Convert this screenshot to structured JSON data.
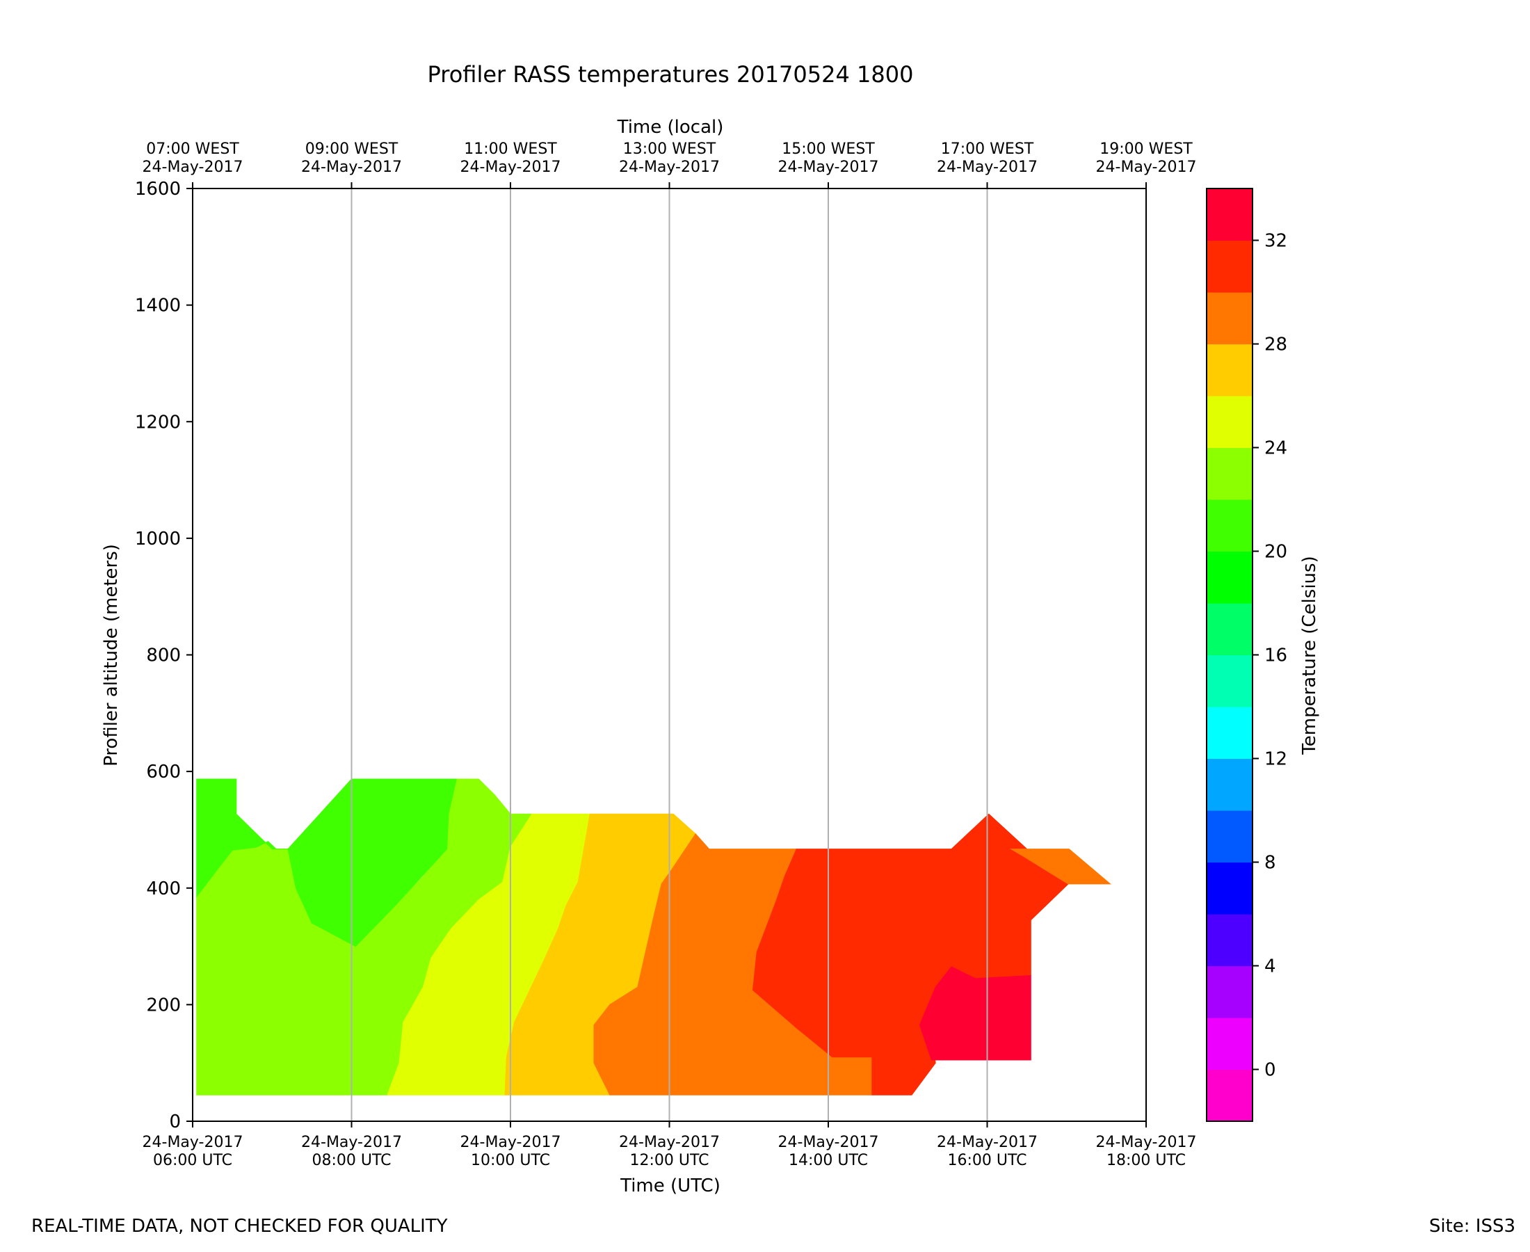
{
  "chart_data": {
    "type": "heatmap",
    "title": "Profiler RASS temperatures 20170524 1800",
    "xlabel": "Time (UTC)",
    "xlabel_top": "Time (local)",
    "ylabel": "Profiler altitude (meters)",
    "colorbar_label": "Temperature (Celsius)",
    "x_range_hours_utc": [
      6,
      18
    ],
    "ylim": [
      0,
      1600
    ],
    "grid": "vertical lines at x ticks",
    "x_ticks": [
      {
        "hour": 6,
        "utc_date": "24-May-2017",
        "utc_time": "06:00 UTC",
        "local_time": "07:00 WEST",
        "local_date": "24-May-2017"
      },
      {
        "hour": 8,
        "utc_date": "24-May-2017",
        "utc_time": "08:00 UTC",
        "local_time": "09:00 WEST",
        "local_date": "24-May-2017"
      },
      {
        "hour": 10,
        "utc_date": "24-May-2017",
        "utc_time": "10:00 UTC",
        "local_time": "11:00 WEST",
        "local_date": "24-May-2017"
      },
      {
        "hour": 12,
        "utc_date": "24-May-2017",
        "utc_time": "12:00 UTC",
        "local_time": "13:00 WEST",
        "local_date": "24-May-2017"
      },
      {
        "hour": 14,
        "utc_date": "24-May-2017",
        "utc_time": "14:00 UTC",
        "local_time": "15:00 WEST",
        "local_date": "24-May-2017"
      },
      {
        "hour": 16,
        "utc_date": "24-May-2017",
        "utc_time": "16:00 UTC",
        "local_time": "17:00 WEST",
        "local_date": "24-May-2017"
      },
      {
        "hour": 18,
        "utc_date": "24-May-2017",
        "utc_time": "18:00 UTC",
        "local_time": "19:00 WEST",
        "local_date": "24-May-2017"
      }
    ],
    "y_ticks": [
      0,
      200,
      400,
      600,
      800,
      1000,
      1200,
      1400,
      1600
    ],
    "colorbar": {
      "range": [
        -2,
        34
      ],
      "ticks": [
        0,
        4,
        8,
        12,
        16,
        20,
        24,
        28,
        32
      ],
      "levels": [
        {
          "from": -2,
          "to": 0,
          "color": "#ff00cc"
        },
        {
          "from": 0,
          "to": 2,
          "color": "#ee00ff"
        },
        {
          "from": 2,
          "to": 4,
          "color": "#a600ff"
        },
        {
          "from": 4,
          "to": 6,
          "color": "#4d00ff"
        },
        {
          "from": 6,
          "to": 8,
          "color": "#0000ff"
        },
        {
          "from": 8,
          "to": 10,
          "color": "#005aff"
        },
        {
          "from": 10,
          "to": 12,
          "color": "#00a6ff"
        },
        {
          "from": 12,
          "to": 14,
          "color": "#00ffff"
        },
        {
          "from": 14,
          "to": 16,
          "color": "#00ffb3"
        },
        {
          "from": 16,
          "to": 18,
          "color": "#00ff66"
        },
        {
          "from": 18,
          "to": 20,
          "color": "#00ff00"
        },
        {
          "from": 20,
          "to": 22,
          "color": "#40ff00"
        },
        {
          "from": 22,
          "to": 24,
          "color": "#8cff00"
        },
        {
          "from": 24,
          "to": 26,
          "color": "#e0ff00"
        },
        {
          "from": 26,
          "to": 28,
          "color": "#ffcc00"
        },
        {
          "from": 28,
          "to": 30,
          "color": "#ff7700"
        },
        {
          "from": 30,
          "to": 32,
          "color": "#ff2a00"
        },
        {
          "from": 32,
          "to": 34,
          "color": "#ff0033"
        }
      ]
    },
    "regions": [
      {
        "level": "22-24",
        "color": "#8cff00",
        "points": [
          [
            6.05,
            45
          ],
          [
            8.45,
            45
          ],
          [
            8.6,
            100
          ],
          [
            8.65,
            170
          ],
          [
            8.9,
            230
          ],
          [
            9.0,
            280
          ],
          [
            9.25,
            330
          ],
          [
            9.6,
            380
          ],
          [
            9.9,
            410
          ],
          [
            10.0,
            470
          ],
          [
            10.27,
            527
          ],
          [
            10.0,
            527
          ],
          [
            9.8,
            560
          ],
          [
            9.6,
            587
          ],
          [
            9.2,
            587
          ],
          [
            9.15,
            527
          ],
          [
            9.15,
            467
          ],
          [
            8.9,
            420
          ],
          [
            8.55,
            370
          ],
          [
            8.05,
            300
          ],
          [
            7.5,
            340
          ],
          [
            7.3,
            400
          ],
          [
            7.2,
            467
          ],
          [
            7.05,
            467
          ],
          [
            6.95,
            480
          ],
          [
            6.8,
            470
          ],
          [
            6.5,
            465
          ],
          [
            6.3,
            430
          ],
          [
            6.05,
            385
          ]
        ]
      },
      {
        "level": "20-22",
        "color": "#40ff00",
        "points": [
          [
            6.05,
            587
          ],
          [
            6.55,
            587
          ],
          [
            6.55,
            527
          ],
          [
            7.0,
            467
          ],
          [
            7.2,
            467
          ],
          [
            8.0,
            587
          ],
          [
            9.32,
            587
          ],
          [
            9.22,
            527
          ],
          [
            9.2,
            467
          ],
          [
            8.55,
            370
          ],
          [
            8.05,
            300
          ],
          [
            7.5,
            340
          ],
          [
            7.3,
            400
          ],
          [
            7.2,
            467
          ],
          [
            7.05,
            467
          ],
          [
            6.95,
            480
          ],
          [
            6.8,
            470
          ],
          [
            6.5,
            465
          ],
          [
            6.3,
            430
          ],
          [
            6.05,
            385
          ]
        ]
      },
      {
        "level": "24-26",
        "color": "#e0ff00",
        "points": [
          [
            8.45,
            45
          ],
          [
            9.93,
            45
          ],
          [
            9.95,
            110
          ],
          [
            10.05,
            170
          ],
          [
            10.4,
            270
          ],
          [
            10.6,
            330
          ],
          [
            10.7,
            370
          ],
          [
            10.85,
            410
          ],
          [
            11.0,
            527
          ],
          [
            10.27,
            527
          ],
          [
            10.0,
            470
          ],
          [
            9.9,
            410
          ],
          [
            9.6,
            380
          ],
          [
            9.25,
            330
          ],
          [
            9.0,
            280
          ],
          [
            8.9,
            230
          ],
          [
            8.65,
            170
          ],
          [
            8.6,
            100
          ]
        ]
      },
      {
        "level": "26-28",
        "color": "#ffcc00",
        "points": [
          [
            9.93,
            45
          ],
          [
            11.25,
            45
          ],
          [
            11.05,
            100
          ],
          [
            11.05,
            165
          ],
          [
            11.25,
            200
          ],
          [
            11.6,
            230
          ],
          [
            11.7,
            290
          ],
          [
            11.8,
            350
          ],
          [
            11.9,
            407
          ],
          [
            12.02,
            430
          ],
          [
            12.33,
            493
          ],
          [
            12.05,
            527
          ],
          [
            11.0,
            527
          ],
          [
            10.85,
            410
          ],
          [
            10.7,
            370
          ],
          [
            10.6,
            330
          ],
          [
            10.4,
            270
          ],
          [
            10.05,
            170
          ],
          [
            9.95,
            110
          ]
        ]
      },
      {
        "level": "28-30",
        "color": "#ff7700",
        "points": [
          [
            11.25,
            45
          ],
          [
            14.55,
            45
          ],
          [
            14.55,
            110
          ],
          [
            14.05,
            110
          ],
          [
            13.6,
            160
          ],
          [
            13.05,
            225
          ],
          [
            13.1,
            290
          ],
          [
            13.35,
            380
          ],
          [
            13.45,
            420
          ],
          [
            13.6,
            467
          ],
          [
            12.5,
            467
          ],
          [
            12.33,
            493
          ],
          [
            12.02,
            430
          ],
          [
            11.9,
            407
          ],
          [
            11.8,
            350
          ],
          [
            11.7,
            290
          ],
          [
            11.6,
            230
          ],
          [
            11.25,
            200
          ],
          [
            11.05,
            165
          ],
          [
            11.05,
            100
          ]
        ]
      },
      {
        "level": "30-32",
        "color": "#ff2a00",
        "points": [
          [
            14.55,
            45
          ],
          [
            15.05,
            45
          ],
          [
            15.35,
            100
          ],
          [
            15.3,
            140
          ],
          [
            15.15,
            165
          ],
          [
            15.35,
            230
          ],
          [
            15.55,
            265
          ],
          [
            15.85,
            245
          ],
          [
            16.55,
            250
          ],
          [
            16.55,
            345
          ],
          [
            17.02,
            407
          ],
          [
            16.5,
            467
          ],
          [
            16.02,
            527
          ],
          [
            15.55,
            467
          ],
          [
            13.6,
            467
          ],
          [
            13.45,
            420
          ],
          [
            13.35,
            380
          ],
          [
            13.1,
            290
          ],
          [
            13.05,
            225
          ],
          [
            13.6,
            160
          ],
          [
            14.05,
            110
          ],
          [
            14.55,
            110
          ]
        ]
      },
      {
        "level": "32-34",
        "color": "#ff0033",
        "points": [
          [
            15.3,
            105
          ],
          [
            16.55,
            105
          ],
          [
            16.55,
            250
          ],
          [
            15.85,
            245
          ],
          [
            15.55,
            265
          ],
          [
            15.35,
            230
          ],
          [
            15.15,
            165
          ]
        ]
      },
      {
        "level": "28-30",
        "color": "#ff7700",
        "points": [
          [
            16.3,
            467
          ],
          [
            17.03,
            467
          ],
          [
            17.55,
            407
          ],
          [
            17.02,
            407
          ],
          [
            16.45,
            455
          ]
        ]
      }
    ]
  },
  "footer": {
    "left": "REAL-TIME DATA, NOT CHECKED FOR QUALITY",
    "right": "Site: ISS3"
  }
}
